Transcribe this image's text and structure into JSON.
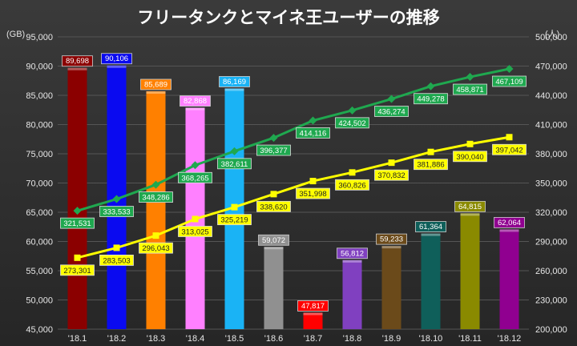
{
  "chart_data": {
    "type": "bar",
    "title": "フリータンクとマイネ王ユーザーの推移",
    "left_axis": {
      "unit_label": "(GB)",
      "ylim": [
        45000,
        95000
      ],
      "ticks": [
        "95,000",
        "90,000",
        "85,000",
        "80,000",
        "75,000",
        "70,000",
        "65,000",
        "60,000",
        "55,000",
        "50,000",
        "45,000"
      ]
    },
    "right_axis": {
      "unit_label": "(人)",
      "ylim": [
        200000,
        500000
      ],
      "ticks": [
        "500,000",
        "470,000",
        "440,000",
        "410,000",
        "380,000",
        "350,000",
        "320,000",
        "290,000",
        "260,000",
        "230,000",
        "200,000"
      ]
    },
    "categories": [
      "'18.1",
      "'18.2",
      "'18.3",
      "'18.4",
      "'18.5",
      "'18.6",
      "'18.7",
      "'18.8",
      "'18.9",
      "'18.10",
      "'18.11",
      "'18.12"
    ],
    "bars": {
      "axis": "left",
      "values": [
        89698,
        90106,
        85689,
        82868,
        86169,
        59072,
        47817,
        56812,
        59233,
        61364,
        64815,
        62064
      ],
      "labels": [
        "89,698",
        "90,106",
        "85,689",
        "82,868",
        "86,169",
        "59,072",
        "47,817",
        "56,812",
        "59,233",
        "61,364",
        "64,815",
        "62,064"
      ],
      "colors": [
        "#8b0000",
        "#0a0af0",
        "#ff8000",
        "#ff80ff",
        "#1ab3f5",
        "#909090",
        "#ff0000",
        "#8040c0",
        "#6b4a1a",
        "#0f5f5a",
        "#8a8a00",
        "#900090"
      ]
    },
    "series": [
      {
        "axis": "right",
        "color": "#1fa84f",
        "marker": "diamond",
        "values": [
          321531,
          333533,
          348286,
          368265,
          382611,
          396377,
          414116,
          424502,
          436274,
          449278,
          458871,
          467109
        ],
        "labels": [
          "321,531",
          "333,533",
          "348,286",
          "368,265",
          "382,611",
          "396,377",
          "414,116",
          "424,502",
          "436,274",
          "449,278",
          "458,871",
          "467,109"
        ]
      },
      {
        "axis": "right",
        "color": "#ffff00",
        "marker": "square",
        "values": [
          273301,
          283503,
          296043,
          313025,
          325219,
          338620,
          351998,
          360826,
          370832,
          381886,
          390040,
          397042
        ],
        "labels": [
          "273,301",
          "283,503",
          "296,043",
          "313,025",
          "325,219",
          "338,620",
          "351,998",
          "360,826",
          "370,832",
          "381,886",
          "390,040",
          "397,042"
        ]
      }
    ],
    "grid": true,
    "colors": {
      "background": "#2e2e2e",
      "grid": "#555555",
      "text": "#e6e6e6"
    }
  }
}
